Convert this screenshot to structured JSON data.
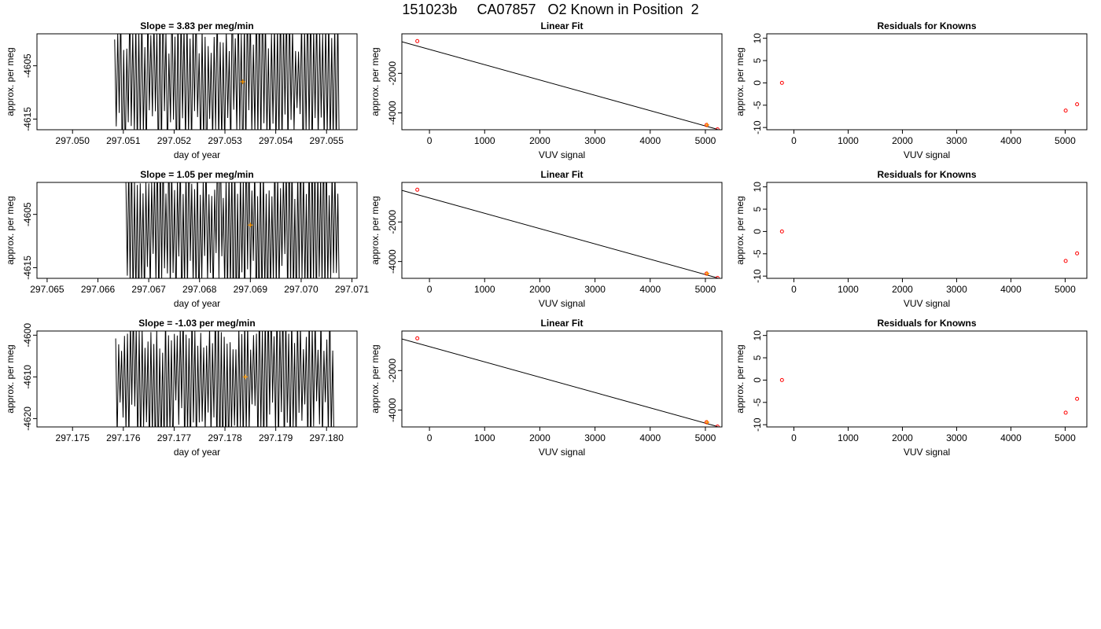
{
  "page": {
    "title": "151023b     CA07857   O2 Known in Position  2"
  },
  "colors": {
    "trace": "#000000",
    "fit_line": "#000000",
    "known_point": "#ff0000",
    "mean_marker": "#ff9900"
  },
  "chart_data": [
    {
      "type": "line",
      "title": "Slope =  3.83  per meg/min",
      "xlabel": "day of year",
      "ylabel": "approx. per meg",
      "xlim": [
        297.0493,
        297.0556
      ],
      "ylim": [
        -4617,
        -4599
      ],
      "xticks": [
        "297.050",
        "297.051",
        "297.052",
        "297.053",
        "297.054",
        "297.055"
      ],
      "xtick_values": [
        297.05,
        297.051,
        297.052,
        297.053,
        297.054,
        297.055
      ],
      "yticks": [
        "-4605",
        "-4615"
      ],
      "ytick_values": [
        -4605,
        -4615
      ],
      "trace": {
        "x_start": 297.05083,
        "x_end": 297.05525,
        "n": 150,
        "y_center": -4608,
        "y_amp": 14,
        "seed": 11
      },
      "mean_point": {
        "x": 297.05335,
        "y": -4608
      }
    },
    {
      "type": "line",
      "title": "Linear Fit",
      "xlabel": "VUV signal",
      "ylabel": "approx. per meg",
      "xlim": [
        -500,
        5300
      ],
      "ylim": [
        -4850,
        0
      ],
      "xticks": [
        "0",
        "1000",
        "2000",
        "3000",
        "4000",
        "5000"
      ],
      "xtick_values": [
        0,
        1000,
        2000,
        3000,
        4000,
        5000
      ],
      "yticks": [
        "-2000",
        "-4000"
      ],
      "ytick_values": [
        -2000,
        -4000
      ],
      "fit_line": {
        "x": [
          -500,
          5220
        ],
        "y": [
          -400,
          -4830
        ]
      },
      "points": [
        {
          "x": -220,
          "y": -370
        },
        {
          "x": 5020,
          "y": -4610
        },
        {
          "x": 5220,
          "y": -4830
        }
      ],
      "mean_point": {
        "x": 5030,
        "y": -4608
      }
    },
    {
      "type": "scatter",
      "title": "Residuals for Knowns",
      "xlabel": "VUV signal",
      "ylabel": "approx. per meg",
      "xlim": [
        -500,
        5400
      ],
      "ylim": [
        -10.5,
        11
      ],
      "xticks": [
        "0",
        "1000",
        "2000",
        "3000",
        "4000",
        "5000"
      ],
      "xtick_values": [
        0,
        1000,
        2000,
        3000,
        4000,
        5000
      ],
      "yticks": [
        "10",
        "5",
        "0",
        "-5",
        "-10"
      ],
      "ytick_values": [
        10,
        5,
        0,
        -5,
        -10
      ],
      "points": [
        {
          "x": -220,
          "y": 0
        },
        {
          "x": 5010,
          "y": -6.2
        },
        {
          "x": 5220,
          "y": -4.8
        }
      ]
    },
    {
      "type": "line",
      "title": "Slope =  1.05  per meg/min",
      "xlabel": "day of year",
      "ylabel": "approx. per meg",
      "xlim": [
        297.0648,
        297.0711
      ],
      "ylim": [
        -4617,
        -4599
      ],
      "xticks": [
        "297.065",
        "297.066",
        "297.067",
        "297.068",
        "297.069",
        "297.070",
        "297.071"
      ],
      "xtick_values": [
        297.065,
        297.066,
        297.067,
        297.068,
        297.069,
        297.07,
        297.071
      ],
      "yticks": [
        "-4605",
        "-4615"
      ],
      "ytick_values": [
        -4605,
        -4615
      ],
      "trace": {
        "x_start": 297.06655,
        "x_end": 297.07075,
        "n": 150,
        "y_center": -4607,
        "y_amp": 14,
        "seed": 23
      },
      "mean_point": {
        "x": 297.069,
        "y": -4607
      }
    },
    {
      "type": "line",
      "title": "Linear Fit",
      "xlabel": "VUV signal",
      "ylabel": "approx. per meg",
      "xlim": [
        -500,
        5300
      ],
      "ylim": [
        -4850,
        0
      ],
      "xticks": [
        "0",
        "1000",
        "2000",
        "3000",
        "4000",
        "5000"
      ],
      "xtick_values": [
        0,
        1000,
        2000,
        3000,
        4000,
        5000
      ],
      "yticks": [
        "-2000",
        "-4000"
      ],
      "ytick_values": [
        -2000,
        -4000
      ],
      "fit_line": {
        "x": [
          -500,
          5220
        ],
        "y": [
          -400,
          -4830
        ]
      },
      "points": [
        {
          "x": -220,
          "y": -370
        },
        {
          "x": 5020,
          "y": -4610
        },
        {
          "x": 5220,
          "y": -4830
        }
      ],
      "mean_point": {
        "x": 5030,
        "y": -4607
      }
    },
    {
      "type": "scatter",
      "title": "Residuals for Knowns",
      "xlabel": "VUV signal",
      "ylabel": "approx. per meg",
      "xlim": [
        -500,
        5400
      ],
      "ylim": [
        -10.5,
        11
      ],
      "xticks": [
        "0",
        "1000",
        "2000",
        "3000",
        "4000",
        "5000"
      ],
      "xtick_values": [
        0,
        1000,
        2000,
        3000,
        4000,
        5000
      ],
      "yticks": [
        "10",
        "5",
        "0",
        "-5",
        "-10"
      ],
      "ytick_values": [
        10,
        5,
        0,
        -5,
        -10
      ],
      "points": [
        {
          "x": -220,
          "y": 0
        },
        {
          "x": 5010,
          "y": -6.6
        },
        {
          "x": 5220,
          "y": -4.9
        }
      ]
    },
    {
      "type": "line",
      "title": "Slope =  -1.03  per meg/min",
      "xlabel": "day of year",
      "ylabel": "approx. per meg",
      "xlim": [
        297.1743,
        297.1806
      ],
      "ylim": [
        -4622,
        -4599
      ],
      "xticks": [
        "297.175",
        "297.176",
        "297.177",
        "297.178",
        "297.179",
        "297.180"
      ],
      "xtick_values": [
        297.175,
        297.176,
        297.177,
        297.178,
        297.179,
        297.18
      ],
      "yticks": [
        "-4600",
        "-4610",
        "-4620"
      ],
      "ytick_values": [
        -4600,
        -4610,
        -4620
      ],
      "trace": {
        "x_start": 297.17585,
        "x_end": 297.18015,
        "n": 150,
        "y_center": -4610,
        "y_amp": 16,
        "seed": 37
      },
      "mean_point": {
        "x": 297.1784,
        "y": -4610
      }
    },
    {
      "type": "line",
      "title": "Linear Fit",
      "xlabel": "VUV signal",
      "ylabel": "approx. per meg",
      "xlim": [
        -500,
        5300
      ],
      "ylim": [
        -4850,
        0
      ],
      "xticks": [
        "0",
        "1000",
        "2000",
        "3000",
        "4000",
        "5000"
      ],
      "xtick_values": [
        0,
        1000,
        2000,
        3000,
        4000,
        5000
      ],
      "yticks": [
        "-2000",
        "-4000"
      ],
      "ytick_values": [
        -2000,
        -4000
      ],
      "fit_line": {
        "x": [
          -500,
          5220
        ],
        "y": [
          -400,
          -4830
        ]
      },
      "points": [
        {
          "x": -220,
          "y": -370
        },
        {
          "x": 5020,
          "y": -4610
        },
        {
          "x": 5220,
          "y": -4830
        }
      ],
      "mean_point": {
        "x": 5030,
        "y": -4610
      }
    },
    {
      "type": "scatter",
      "title": "Residuals for Knowns",
      "xlabel": "VUV signal",
      "ylabel": "approx. per meg",
      "xlim": [
        -500,
        5400
      ],
      "ylim": [
        -10.5,
        11
      ],
      "xticks": [
        "0",
        "1000",
        "2000",
        "3000",
        "4000",
        "5000"
      ],
      "xtick_values": [
        0,
        1000,
        2000,
        3000,
        4000,
        5000
      ],
      "yticks": [
        "10",
        "5",
        "0",
        "-5",
        "-10"
      ],
      "ytick_values": [
        10,
        5,
        0,
        -5,
        -10
      ],
      "points": [
        {
          "x": -220,
          "y": 0
        },
        {
          "x": 5010,
          "y": -7.3
        },
        {
          "x": 5220,
          "y": -4.2
        }
      ]
    }
  ]
}
